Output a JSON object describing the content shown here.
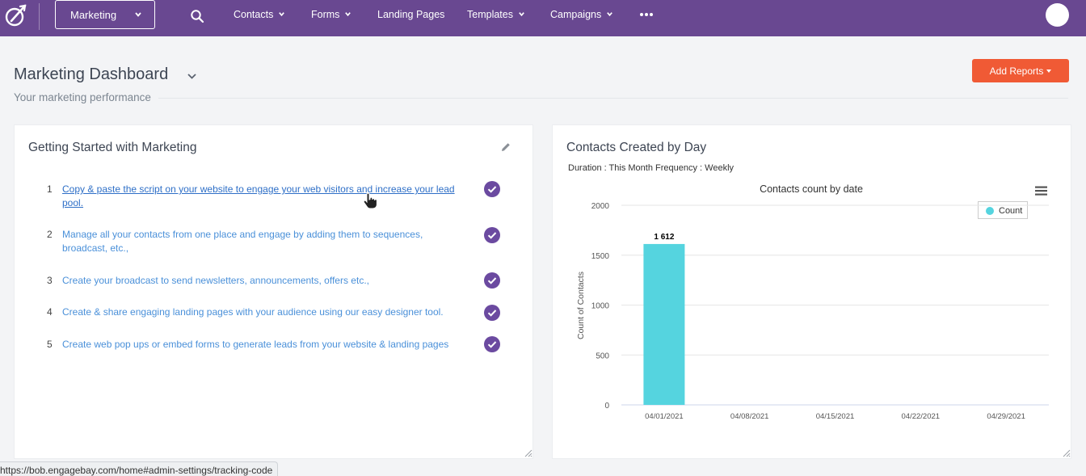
{
  "topnav": {
    "app_selector": "Marketing",
    "items": [
      {
        "label": "Contacts",
        "dropdown": true
      },
      {
        "label": "Forms",
        "dropdown": true
      },
      {
        "label": "Landing Pages",
        "dropdown": false
      },
      {
        "label": "Templates",
        "dropdown": true
      },
      {
        "label": "Campaigns",
        "dropdown": true
      }
    ],
    "icons": [
      "engagebay-logo-icon",
      "search-icon",
      "more-horizontal-icon",
      "user-avatar"
    ],
    "color": "#694891"
  },
  "header": {
    "title": "Marketing Dashboard",
    "subtitle": "Your marketing performance",
    "add_reports_label": "Add Reports",
    "add_reports_color": "#f05a35"
  },
  "getting_started": {
    "title": "Getting Started with Marketing",
    "steps": [
      {
        "num": "1",
        "text": "Copy & paste the script on your website to engage your web visitors and increase your lead pool.",
        "done": true
      },
      {
        "num": "2",
        "text": "Manage all your contacts from one place and engage by adding them to sequences, broadcast, etc.,",
        "done": true
      },
      {
        "num": "3",
        "text": "Create your broadcast to send newsletters, announcements, offers etc.,",
        "done": true
      },
      {
        "num": "4",
        "text": "Create & share engaging landing pages with your audience using our easy designer tool.",
        "done": true
      },
      {
        "num": "5",
        "text": "Create web pop ups or embed forms to generate leads from your website & landing pages",
        "done": true
      }
    ],
    "check_color": "#6b4aa0"
  },
  "contacts_card": {
    "title": "Contacts Created by Day",
    "duration": "Duration : This Month Frequency : Weekly"
  },
  "chart_data": {
    "type": "bar",
    "title": "Contacts count by date",
    "xlabel": "",
    "ylabel": "Count of Contacts",
    "categories": [
      "04/01/2021",
      "04/08/2021",
      "04/15/2021",
      "04/22/2021",
      "04/29/2021"
    ],
    "series": [
      {
        "name": "Count",
        "values": [
          1612,
          0,
          0,
          0,
          0
        ]
      }
    ],
    "data_labels": [
      "1 612"
    ],
    "ylim": [
      0,
      2000
    ],
    "yticks": [
      0,
      500,
      1000,
      1500,
      2000
    ],
    "grid": true,
    "legend": "top-right",
    "bar_color": "#55d4df"
  },
  "status_bar": {
    "url": "https://bob.engagebay.com/home#admin-settings/tracking-code"
  }
}
